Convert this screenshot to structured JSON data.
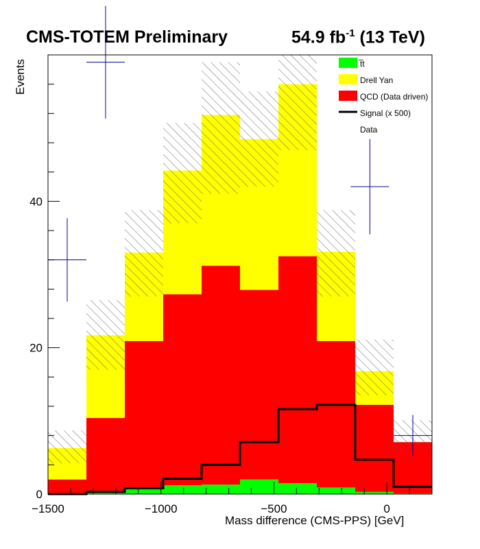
{
  "header": {
    "title": "CMS-TOTEM Preliminary",
    "lumi_value": "54.9 fb",
    "lumi_exp": "-1",
    "lumi_energy": " (13 TeV)"
  },
  "chart_data": {
    "type": "bar",
    "stacked": true,
    "xlabel": "Mass difference (CMS-PPS) [GeV]",
    "ylabel": "Events",
    "xlim": [
      -1500,
      200
    ],
    "ylim": [
      0,
      60
    ],
    "x_ticks": [
      -1500,
      -1000,
      -500,
      0
    ],
    "y_ticks": [
      0,
      20,
      40
    ],
    "bin_edges": [
      -1500,
      -1330,
      -1160,
      -990,
      -820,
      -650,
      -480,
      -310,
      -140,
      30,
      200
    ],
    "series": [
      {
        "name": "t̅t",
        "color": "#00ff00",
        "values": [
          0.0,
          0.2,
          0.7,
          1.2,
          1.3,
          2.0,
          1.5,
          0.9,
          0.3,
          0.1
        ]
      },
      {
        "name": "QCD (Data driven)",
        "color": "#ff0000",
        "values": [
          2.0,
          10.2,
          20.2,
          26.1,
          29.9,
          25.9,
          31.0,
          20.0,
          11.9,
          7.0
        ]
      },
      {
        "name": "Drell Yan",
        "color": "#ffff00",
        "values": [
          4.3,
          11.3,
          12.1,
          16.9,
          20.6,
          20.6,
          23.5,
          12.2,
          4.6,
          0.0
        ]
      }
    ],
    "uncertainty": {
      "name": "syst. uncertainty",
      "pattern": "hatched",
      "upper": [
        8.7,
        26.5,
        38.8,
        50.7,
        59.0,
        55.0,
        60.0,
        38.8,
        21.1,
        10.1
      ],
      "lower": [
        4.2,
        17.0,
        27.0,
        37.0,
        41.0,
        42.0,
        47.0,
        27.0,
        13.5,
        5.8
      ]
    },
    "signal": {
      "name": "Signal (x 500)",
      "color": "#000000",
      "values": [
        0.0,
        0.3,
        0.8,
        2.1,
        4.0,
        7.1,
        11.6,
        12.2,
        4.7,
        1.0
      ]
    },
    "data": {
      "name": "Data",
      "color": "#000099",
      "x": [
        -1415,
        -1245,
        -75,
        115
      ],
      "y": [
        32,
        59,
        42,
        8
      ],
      "yerr_low": [
        5.7,
        7.7,
        6.5,
        2.8
      ],
      "yerr_high": [
        5.7,
        7.7,
        6.5,
        2.8
      ],
      "xerr": [
        85,
        85,
        85,
        85
      ]
    },
    "legend": {
      "position": "top-right",
      "entries": [
        {
          "label": "t̅t",
          "style": "fill",
          "color": "#00ff00"
        },
        {
          "label": "Drell Yan",
          "style": "fill",
          "color": "#ffff00"
        },
        {
          "label": "QCD (Data driven)",
          "style": "fill",
          "color": "#ff0000"
        },
        {
          "label": "Signal (x 500)",
          "style": "line",
          "color": "#000000"
        },
        {
          "label": "Data",
          "style": "none",
          "color": "#000099"
        }
      ]
    }
  }
}
